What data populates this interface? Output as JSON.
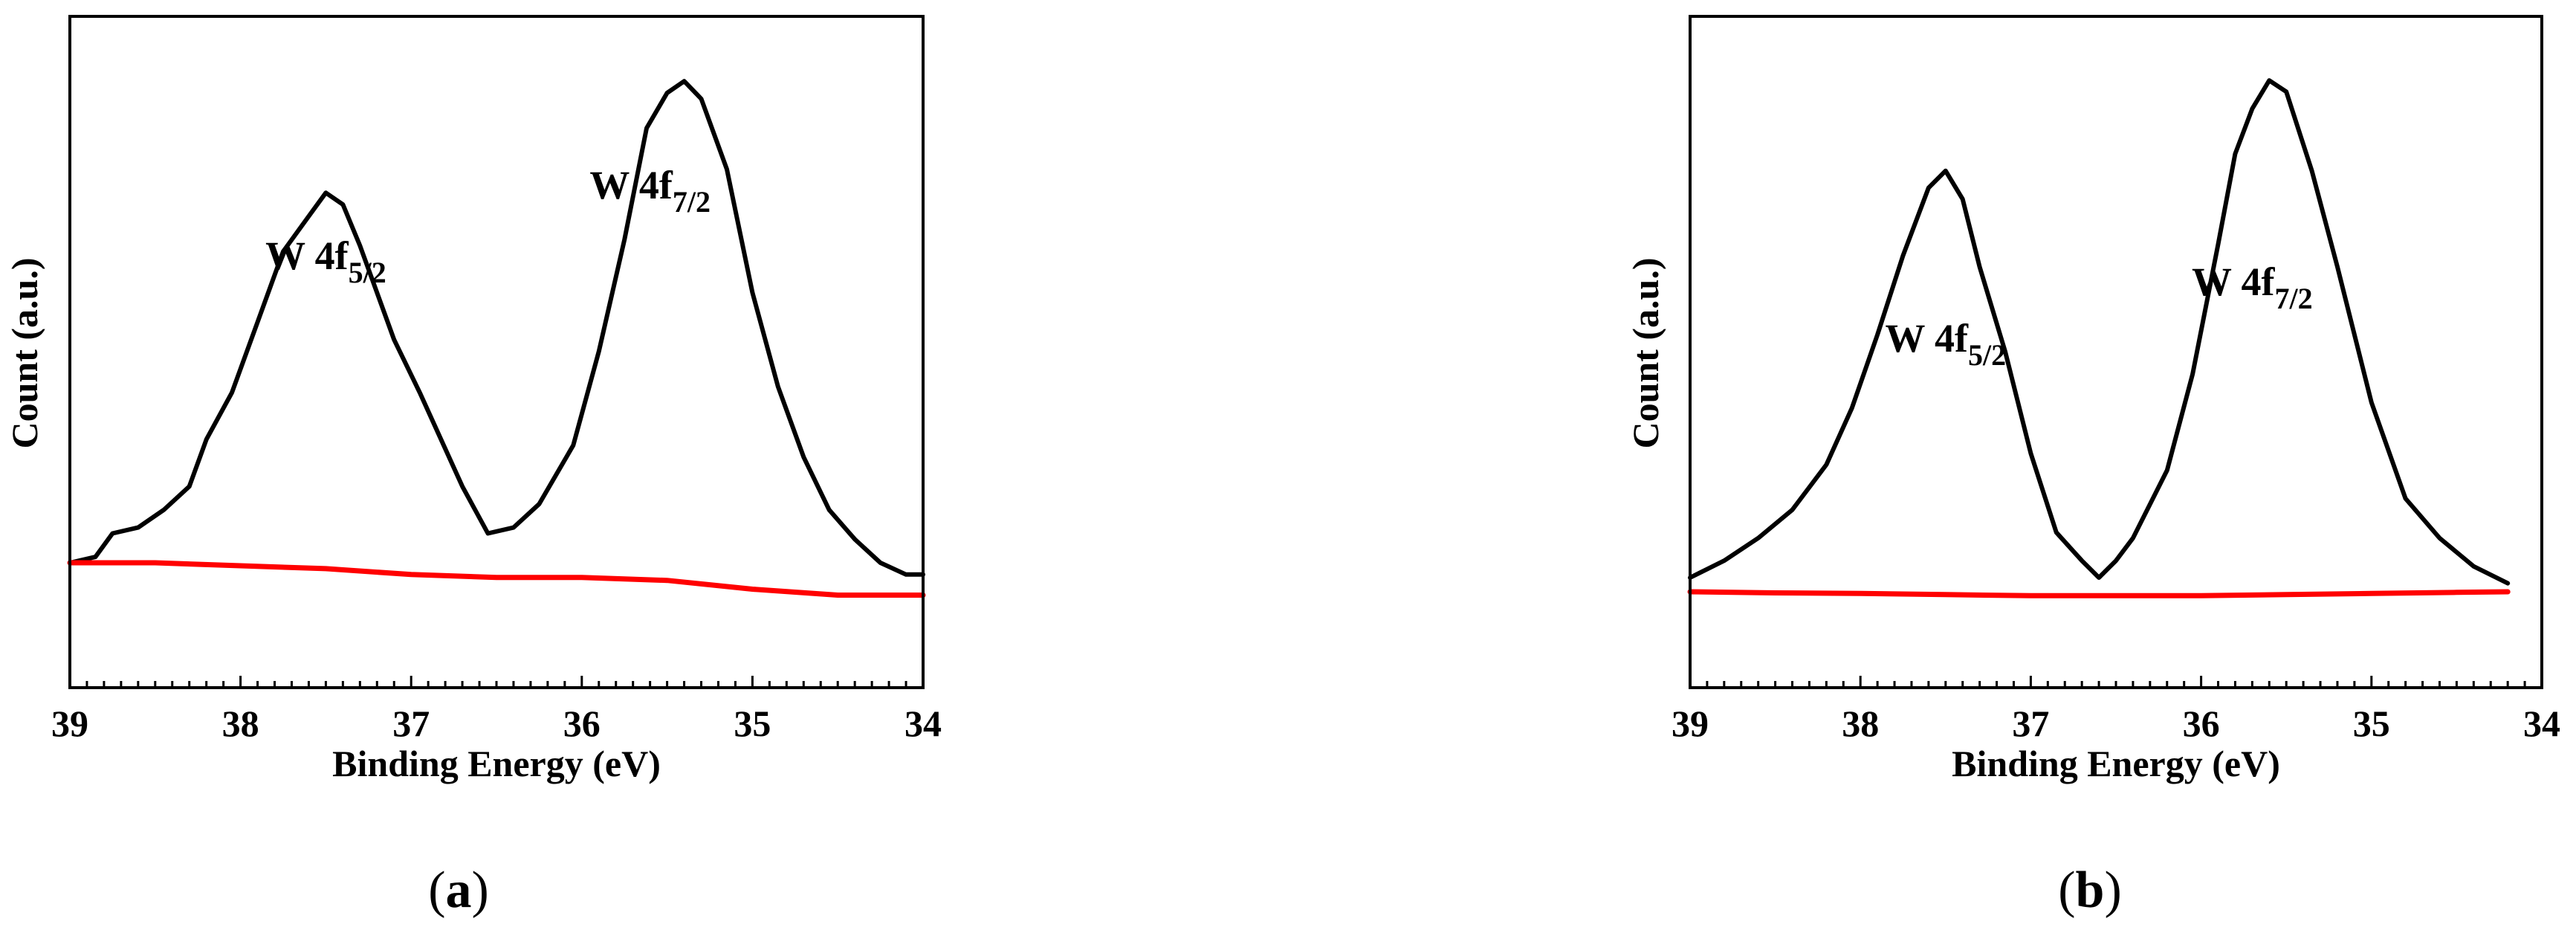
{
  "chart_data": [
    {
      "type": "line",
      "panel_label": "a",
      "xlabel": "Binding Energy (eV)",
      "ylabel": "Count (a.u.)",
      "xlim": [
        39,
        34
      ],
      "x_reversed": true,
      "x_ticks": [
        39,
        38,
        37,
        36,
        35,
        34
      ],
      "y_ticks_shown": false,
      "grid": false,
      "annotations": [
        {
          "text": "W 4f",
          "sub": "5/2",
          "x": 37.5,
          "y": 0.5
        },
        {
          "text": "W 4f",
          "sub": "7/2",
          "x": 35.6,
          "y": 0.62
        }
      ],
      "series": [
        {
          "color": "#000000",
          "x": [
            39.0,
            38.85,
            38.75,
            38.6,
            38.45,
            38.3,
            38.2,
            38.05,
            37.9,
            37.75,
            37.6,
            37.5,
            37.4,
            37.3,
            37.1,
            36.95,
            36.7,
            36.55,
            36.4,
            36.25,
            36.05,
            35.9,
            35.75,
            35.62,
            35.5,
            35.4,
            35.3,
            35.15,
            35.0,
            34.85,
            34.7,
            34.55,
            34.4,
            34.25,
            34.1,
            34.0
          ],
          "y": [
            0.0,
            0.01,
            0.05,
            0.06,
            0.09,
            0.13,
            0.21,
            0.29,
            0.41,
            0.53,
            0.59,
            0.63,
            0.61,
            0.54,
            0.38,
            0.29,
            0.13,
            0.05,
            0.06,
            0.1,
            0.2,
            0.36,
            0.55,
            0.74,
            0.8,
            0.82,
            0.79,
            0.67,
            0.46,
            0.3,
            0.18,
            0.09,
            0.04,
            0.0,
            -0.02,
            -0.02
          ]
        },
        {
          "color": "#ff0000",
          "x": [
            39.0,
            38.5,
            38.0,
            37.5,
            37.0,
            36.5,
            36.0,
            35.5,
            35.0,
            34.5,
            34.0
          ],
          "y": [
            0.0,
            0.0,
            -0.005,
            -0.01,
            -0.02,
            -0.025,
            -0.025,
            -0.03,
            -0.045,
            -0.055,
            -0.055
          ]
        }
      ]
    },
    {
      "type": "line",
      "panel_label": "b",
      "xlabel": "Binding Energy (eV)",
      "ylabel": "Count (a.u.)",
      "xlim": [
        39,
        34
      ],
      "x_reversed": true,
      "x_ticks": [
        39,
        38,
        37,
        36,
        35,
        34
      ],
      "y_ticks_shown": false,
      "grid": false,
      "annotations": [
        {
          "text": "W 4f",
          "sub": "5/2",
          "x": 37.5,
          "y": 0.4
        },
        {
          "text": "W 4f",
          "sub": "7/2",
          "x": 35.7,
          "y": 0.5
        }
      ],
      "series": [
        {
          "color": "#000000",
          "x": [
            39.0,
            38.8,
            38.6,
            38.4,
            38.2,
            38.05,
            37.9,
            37.75,
            37.6,
            37.5,
            37.4,
            37.3,
            37.15,
            37.0,
            36.85,
            36.7,
            36.6,
            36.5,
            36.4,
            36.2,
            36.05,
            35.9,
            35.8,
            35.7,
            35.6,
            35.5,
            35.35,
            35.2,
            35.0,
            34.8,
            34.6,
            34.4,
            34.2
          ],
          "y": [
            0.0,
            0.03,
            0.07,
            0.12,
            0.2,
            0.3,
            0.43,
            0.57,
            0.69,
            0.72,
            0.67,
            0.55,
            0.4,
            0.22,
            0.08,
            0.03,
            0.0,
            0.03,
            0.07,
            0.19,
            0.36,
            0.59,
            0.75,
            0.83,
            0.88,
            0.86,
            0.72,
            0.55,
            0.31,
            0.14,
            0.07,
            0.02,
            -0.01
          ]
        },
        {
          "color": "#ff0000",
          "x": [
            39.0,
            38.5,
            38.0,
            37.5,
            37.0,
            36.5,
            36.0,
            35.5,
            35.0,
            34.5,
            34.2
          ],
          "y": [
            -0.025,
            -0.027,
            -0.028,
            -0.03,
            -0.032,
            -0.032,
            -0.032,
            -0.03,
            -0.028,
            -0.026,
            -0.025
          ]
        }
      ]
    }
  ]
}
